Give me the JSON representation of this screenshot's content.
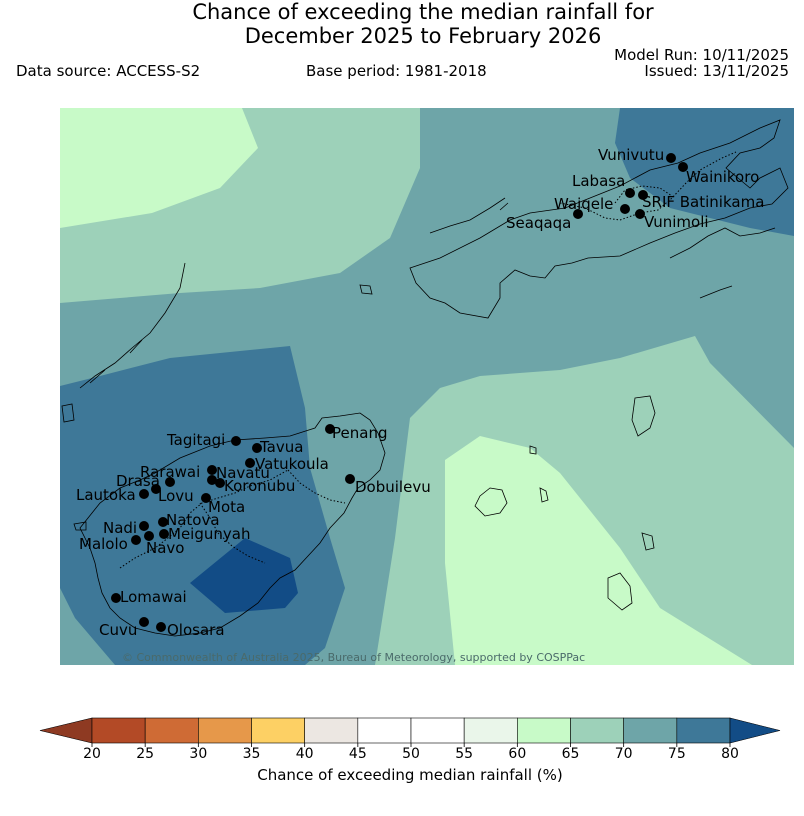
{
  "header": {
    "title_line1": "Chance of exceeding the median rainfall for",
    "title_line2": "December 2025 to February 2026",
    "data_source": "Data source: ACCESS-S2",
    "base_period": "Base period: 1981-2018",
    "model_run": "Model Run: 10/11/2025",
    "issued": "Issued: 13/11/2025"
  },
  "map": {
    "copyright": "© Commonwealth of Australia 2025, Bureau of Meteorology, supported by COSPPac",
    "stations": [
      {
        "name": "Vunivutu"
      },
      {
        "name": "Wainikoro"
      },
      {
        "name": "Labasa"
      },
      {
        "name": "SRIF Batinikama"
      },
      {
        "name": "Waiqele"
      },
      {
        "name": "Seaqaqa"
      },
      {
        "name": "Vunimoli"
      },
      {
        "name": "Tagitagi"
      },
      {
        "name": "Penang"
      },
      {
        "name": "Tavua"
      },
      {
        "name": "Vatukoula"
      },
      {
        "name": "Rarawai"
      },
      {
        "name": "Navatu"
      },
      {
        "name": "Drasa"
      },
      {
        "name": "Koronubu"
      },
      {
        "name": "Dobuilevu"
      },
      {
        "name": "Lautoka"
      },
      {
        "name": "Lovu"
      },
      {
        "name": "Mota"
      },
      {
        "name": "Natova"
      },
      {
        "name": "Nadi"
      },
      {
        "name": "Meigunyah"
      },
      {
        "name": "Malolo"
      },
      {
        "name": "Navo"
      },
      {
        "name": "Lomawai"
      },
      {
        "name": "Cuvu"
      },
      {
        "name": "Olosara"
      }
    ]
  },
  "colorbar": {
    "label": "Chance of exceeding median rainfall (%)",
    "ticks": [
      "20",
      "25",
      "30",
      "35",
      "40",
      "45",
      "50",
      "55",
      "60",
      "65",
      "70",
      "75",
      "80"
    ],
    "colors": {
      "below_20": "#8e3a22",
      "20_25": "#b34a26",
      "25_30": "#cf6b35",
      "30_35": "#e6984a",
      "35_40": "#fdd064",
      "40_45": "#ece7e2",
      "45_50": "#ffffff",
      "50_55": "#ffffff",
      "55_60": "#eaf6ea",
      "60_65": "#c8fac8",
      "65_70": "#9dd1b9",
      "70_75": "#6ea5a8",
      "75_80": "#3e7898",
      "above_80": "#124c86"
    }
  }
}
